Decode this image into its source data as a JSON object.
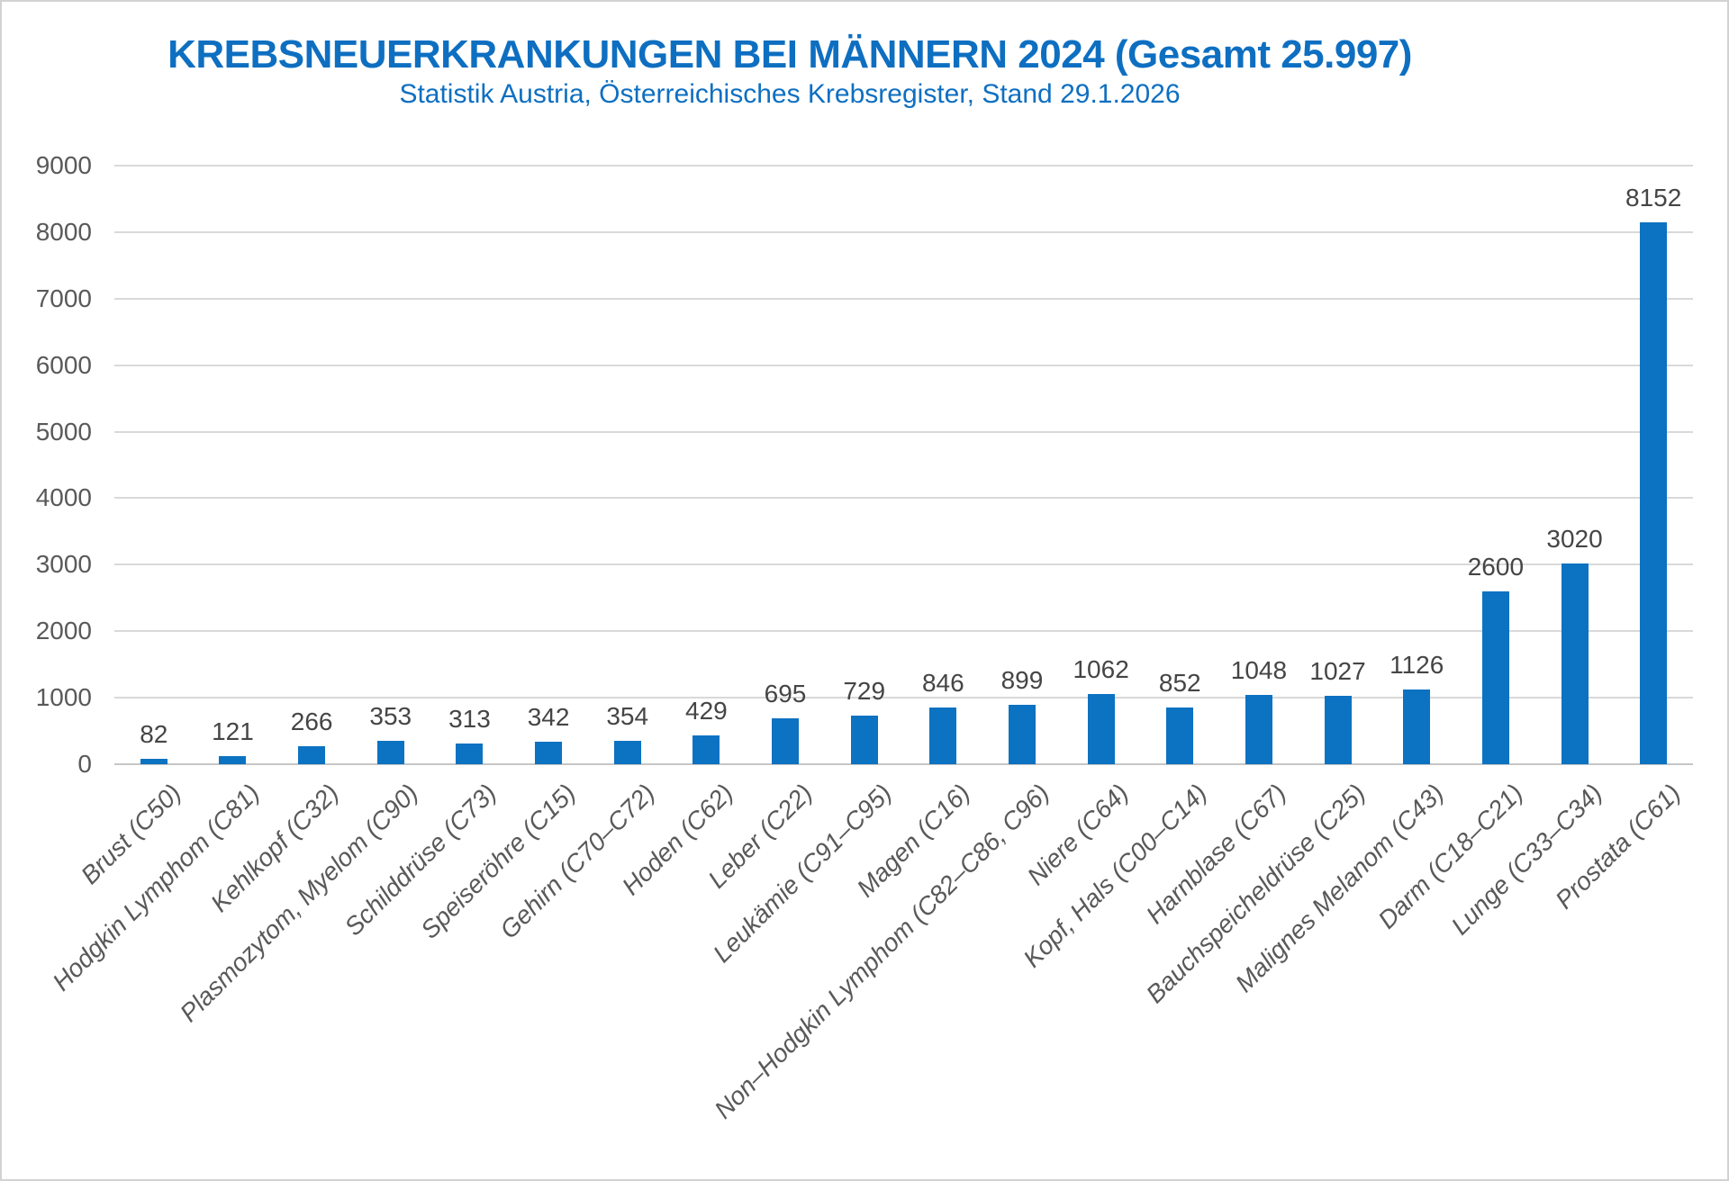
{
  "frame": {
    "background": "#ffffff",
    "border_color": "#d2d2d2"
  },
  "chart_data": {
    "type": "bar",
    "title": "KREBSNEUERKRANKUNGEN BEI MÄNNERN 2024 (Gesamt 25.997)",
    "subtitle": "Statistik Austria, Österreichisches Krebsregister, Stand 29.1.2026",
    "categories": [
      "Brust (C50)",
      "Hodgkin Lymphom (C81)",
      "Kehlkopf (C32)",
      "Plasmozytom, Myelom (C90)",
      "Schilddrüse (C73)",
      "Speiseröhre (C15)",
      "Gehirn (C70–C72)",
      "Hoden (C62)",
      "Leber (C22)",
      "Leukämie (C91–C95)",
      "Magen (C16)",
      "Non–Hodgkin Lymphom (C82–C86, C96)",
      "Niere (C64)",
      "Kopf, Hals (C00–C14)",
      "Harnblase (C67)",
      "Bauchspeicheldrüse (C25)",
      "Malignes Melanom (C43)",
      "Darm (C18–C21)",
      "Lunge (C33–C34)",
      "Prostata (C61)"
    ],
    "values": [
      82,
      121,
      266,
      353,
      313,
      342,
      354,
      429,
      695,
      729,
      846,
      899,
      1062,
      852,
      1048,
      1027,
      1126,
      2600,
      3020,
      8152
    ],
    "xlabel": "",
    "ylabel": "",
    "ylim": [
      0,
      9000
    ],
    "ytick_step": 1000,
    "ytick_labels": [
      "0",
      "1000",
      "2000",
      "3000",
      "4000",
      "5000",
      "6000",
      "7000",
      "8000",
      "9000"
    ],
    "grid": "horizontal",
    "legend_position": "none",
    "data_labels": true,
    "bar_color": "#0c72c2",
    "title_color": "#0e6fc1",
    "axis_label_color": "#595959",
    "value_label_color": "#454545",
    "gridline_color": "#d9d9d9"
  }
}
